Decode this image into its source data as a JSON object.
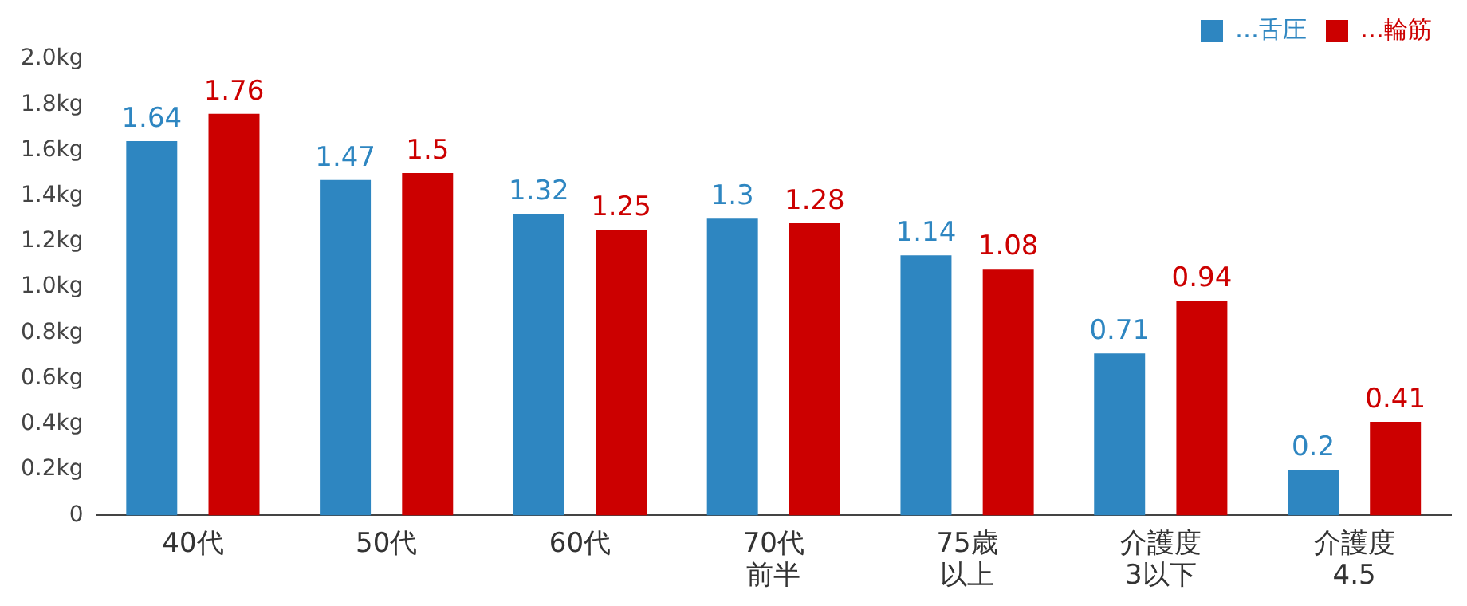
{
  "chart_data": {
    "type": "bar",
    "categories": [
      "40代",
      "50代",
      "60代",
      "70代前半",
      "75歳以上",
      "介護度3以下",
      "介護度4.5"
    ],
    "series": [
      {
        "name": "…舌圧",
        "color": "#2e86c1",
        "values": [
          1.64,
          1.47,
          1.32,
          1.3,
          1.14,
          0.71,
          0.2
        ]
      },
      {
        "name": "…輪筋",
        "color": "#cc0000",
        "values": [
          1.76,
          1.5,
          1.25,
          1.28,
          1.08,
          0.94,
          0.41
        ]
      }
    ],
    "ylim": [
      0,
      2
    ],
    "yticks": [
      0,
      {
        "value": 0.2,
        "label": "0.2kg"
      },
      {
        "value": 0.4,
        "label": "0.4kg"
      },
      {
        "value": 0.6,
        "label": "0.6kg"
      },
      {
        "value": 0.8,
        "label": "0.8kg"
      },
      {
        "value": 1,
        "label": "1.0kg"
      },
      {
        "value": 1.2,
        "label": "1.2kg"
      },
      {
        "value": 1.4,
        "label": "1.4kg"
      },
      {
        "value": 1.6,
        "label": "1.6kg"
      },
      {
        "value": 1.8,
        "label": "1.8kg"
      },
      {
        "value": 2,
        "label": "2.0kg"
      }
    ],
    "grid": false,
    "legend": "top right",
    "data_labels": true
  }
}
